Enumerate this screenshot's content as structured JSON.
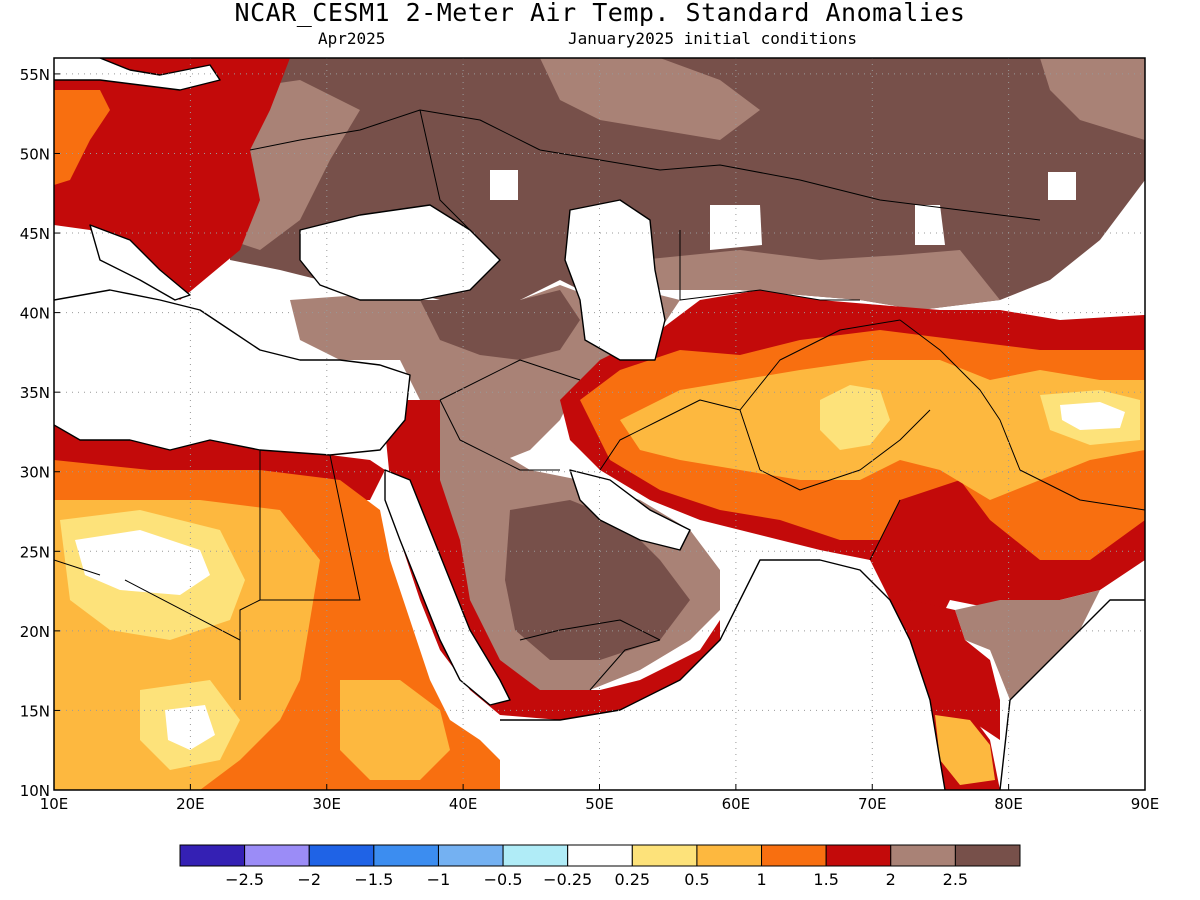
{
  "header": {
    "title": "NCAR_CESM1 2-Meter Air Temp. Standard Anomalies",
    "valid_month": "Apr2025",
    "init": "January2025 initial conditions"
  },
  "map": {
    "lon_range": [
      10,
      90
    ],
    "lat_range": [
      10,
      56
    ],
    "lon_ticks": [
      {
        "value": 10,
        "label": "10E"
      },
      {
        "value": 20,
        "label": "20E"
      },
      {
        "value": 30,
        "label": "30E"
      },
      {
        "value": 40,
        "label": "40E"
      },
      {
        "value": 50,
        "label": "50E"
      },
      {
        "value": 60,
        "label": "60E"
      },
      {
        "value": 70,
        "label": "70E"
      },
      {
        "value": 80,
        "label": "80E"
      },
      {
        "value": 90,
        "label": "90E"
      }
    ],
    "lat_ticks": [
      {
        "value": 10,
        "label": "10N"
      },
      {
        "value": 15,
        "label": "15N"
      },
      {
        "value": 20,
        "label": "20N"
      },
      {
        "value": 25,
        "label": "25N"
      },
      {
        "value": 30,
        "label": "30N"
      },
      {
        "value": 35,
        "label": "35N"
      },
      {
        "value": 40,
        "label": "40N"
      },
      {
        "value": 45,
        "label": "45N"
      },
      {
        "value": 50,
        "label": "50N"
      },
      {
        "value": 55,
        "label": "55N"
      }
    ],
    "palette": {
      "lt_neg0.25": "#ffffff",
      "0.25_0.5": "#fde27a",
      "0.5_1": "#fdb83f",
      "1_1.5": "#f86f10",
      "1.5_2": "#c30a0a",
      "2_2.5": "#a98276",
      "gt_2.5": "#77504a"
    }
  },
  "colorbar": {
    "colors": [
      "#3420b4",
      "#9b8cf7",
      "#1f63e6",
      "#3c8df0",
      "#74b1f2",
      "#b0ecf7",
      "#ffffff",
      "#fde27a",
      "#fdb83f",
      "#f86f10",
      "#c30a0a",
      "#a98276",
      "#77504a"
    ],
    "labels": [
      "−2.5",
      "−2",
      "−1.5",
      "−1",
      "−0.5",
      "−0.25",
      "0.25",
      "0.5",
      "1",
      "1.5",
      "2",
      "2.5"
    ]
  }
}
